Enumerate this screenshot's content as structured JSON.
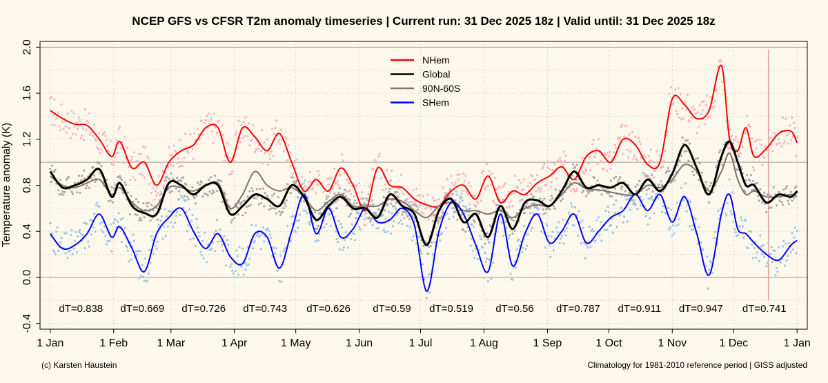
{
  "chart_data": {
    "type": "line",
    "title": "NCEP GFS vs CFSR T2m anomaly timeseries | Current run: 31 Dec 2025 18z | Valid until: 31 Dec 2025 18z",
    "ylabel": "Temperature anomaly (K)",
    "xlabel": "",
    "ylim": [
      -0.45,
      2.05
    ],
    "xlim": [
      -5,
      370
    ],
    "yticks": [
      -0.4,
      0.0,
      0.4,
      0.8,
      1.2,
      1.6,
      2.0
    ],
    "ytick_labels": [
      "-0.4",
      "0.0",
      "0.4",
      "0.8",
      "1.2",
      "1.6",
      "2.0"
    ],
    "xticks": [
      0,
      31,
      59,
      90,
      120,
      151,
      181,
      212,
      243,
      273,
      304,
      334,
      365
    ],
    "xtick_labels": [
      "1 Jan",
      "1 Feb",
      "1 Mar",
      "1 Apr",
      "1 May",
      "1 Jun",
      "1 Jul",
      "1 Aug",
      "1 Sep",
      "1 Oct",
      "1 Nov",
      "1 Dec",
      "1 Jan"
    ],
    "grid": true,
    "reference_lines": [
      0.0,
      1.0,
      2.0
    ],
    "current_day_marker": 351,
    "legend_position": "top-center",
    "series": [
      {
        "name": "NHem",
        "color": "#ff0000",
        "dots_color": "#ffb3c1",
        "x": [
          0,
          6,
          12,
          18,
          24,
          30,
          34,
          40,
          46,
          52,
          58,
          64,
          70,
          76,
          82,
          88,
          94,
          100,
          106,
          112,
          118,
          124,
          130,
          136,
          142,
          148,
          154,
          160,
          166,
          172,
          178,
          184,
          190,
          196,
          202,
          208,
          214,
          220,
          226,
          232,
          238,
          244,
          250,
          256,
          262,
          268,
          274,
          280,
          286,
          292,
          298,
          304,
          310,
          316,
          322,
          328,
          332,
          336,
          340,
          344,
          350,
          356,
          362,
          365
        ],
        "y": [
          1.45,
          1.38,
          1.33,
          1.32,
          1.2,
          1.05,
          1.18,
          0.95,
          1.0,
          0.8,
          1.0,
          1.1,
          1.15,
          1.3,
          1.3,
          1.0,
          1.3,
          1.22,
          1.1,
          1.25,
          1.0,
          0.75,
          0.85,
          0.75,
          0.95,
          0.8,
          0.58,
          0.95,
          0.8,
          0.78,
          0.68,
          0.63,
          0.62,
          0.75,
          0.8,
          0.68,
          0.88,
          0.65,
          0.75,
          0.72,
          0.82,
          0.88,
          0.96,
          0.85,
          1.05,
          1.1,
          1.0,
          1.2,
          1.15,
          0.98,
          1.0,
          1.55,
          1.5,
          1.38,
          1.45,
          1.84,
          1.2,
          1.1,
          1.3,
          1.05,
          1.12,
          1.25,
          1.27,
          1.17
        ]
      },
      {
        "name": "Global",
        "color": "#000000",
        "dots_color": "#a9a9a9",
        "x": [
          0,
          6,
          12,
          18,
          24,
          30,
          34,
          40,
          46,
          52,
          58,
          64,
          70,
          76,
          82,
          88,
          94,
          100,
          106,
          112,
          118,
          124,
          130,
          136,
          142,
          148,
          154,
          160,
          166,
          172,
          178,
          184,
          190,
          196,
          202,
          208,
          214,
          220,
          226,
          232,
          238,
          244,
          250,
          256,
          262,
          268,
          274,
          280,
          286,
          292,
          298,
          304,
          310,
          316,
          322,
          328,
          332,
          336,
          340,
          344,
          350,
          356,
          362,
          365
        ],
        "y": [
          0.92,
          0.78,
          0.8,
          0.85,
          0.94,
          0.7,
          0.82,
          0.62,
          0.56,
          0.55,
          0.82,
          0.8,
          0.72,
          0.8,
          0.8,
          0.55,
          0.62,
          0.72,
          0.68,
          0.62,
          0.8,
          0.7,
          0.5,
          0.62,
          0.7,
          0.6,
          0.6,
          0.52,
          0.72,
          0.62,
          0.55,
          0.28,
          0.58,
          0.68,
          0.48,
          0.55,
          0.35,
          0.62,
          0.42,
          0.65,
          0.67,
          0.62,
          0.75,
          0.92,
          0.78,
          0.8,
          0.78,
          0.82,
          0.72,
          0.85,
          0.75,
          0.9,
          1.15,
          0.95,
          0.72,
          1.05,
          1.18,
          1.0,
          0.8,
          0.8,
          0.65,
          0.72,
          0.7,
          0.75
        ]
      },
      {
        "name": "90N-60S",
        "color": "#7f7268",
        "dots_color": null,
        "x": [
          0,
          6,
          12,
          18,
          24,
          30,
          34,
          40,
          46,
          52,
          58,
          64,
          70,
          76,
          82,
          88,
          94,
          100,
          106,
          112,
          118,
          124,
          130,
          136,
          142,
          148,
          154,
          160,
          166,
          172,
          178,
          184,
          190,
          196,
          202,
          208,
          214,
          220,
          226,
          232,
          238,
          244,
          250,
          256,
          262,
          268,
          274,
          280,
          286,
          292,
          298,
          304,
          310,
          316,
          322,
          328,
          332,
          336,
          340,
          344,
          350,
          356,
          362,
          365
        ],
        "y": [
          0.88,
          0.8,
          0.78,
          0.82,
          0.85,
          0.72,
          0.78,
          0.65,
          0.58,
          0.62,
          0.78,
          0.78,
          0.75,
          0.8,
          0.82,
          0.6,
          0.72,
          0.92,
          0.8,
          0.75,
          0.78,
          0.7,
          0.58,
          0.66,
          0.72,
          0.62,
          0.62,
          0.62,
          0.68,
          0.66,
          0.58,
          0.52,
          0.62,
          0.65,
          0.58,
          0.58,
          0.55,
          0.58,
          0.52,
          0.6,
          0.63,
          0.62,
          0.72,
          0.82,
          0.77,
          0.76,
          0.74,
          0.72,
          0.72,
          0.8,
          0.78,
          0.85,
          0.98,
          0.92,
          0.75,
          0.92,
          1.08,
          0.85,
          0.72,
          0.75,
          0.7,
          0.7,
          0.72,
          0.7
        ]
      },
      {
        "name": "SHem",
        "color": "#0000ff",
        "dots_color": "#9dc8e8",
        "x": [
          0,
          6,
          12,
          18,
          24,
          30,
          34,
          40,
          46,
          52,
          58,
          64,
          70,
          76,
          82,
          88,
          94,
          100,
          106,
          112,
          118,
          124,
          130,
          136,
          142,
          148,
          154,
          160,
          166,
          172,
          178,
          184,
          190,
          196,
          202,
          208,
          214,
          220,
          226,
          232,
          238,
          244,
          250,
          256,
          262,
          268,
          274,
          280,
          286,
          292,
          298,
          304,
          310,
          316,
          322,
          328,
          332,
          336,
          340,
          344,
          350,
          356,
          362,
          365
        ],
        "y": [
          0.38,
          0.25,
          0.28,
          0.38,
          0.55,
          0.35,
          0.44,
          0.25,
          0.05,
          0.38,
          0.52,
          0.6,
          0.4,
          0.25,
          0.38,
          0.18,
          0.12,
          0.38,
          0.35,
          0.08,
          0.4,
          0.72,
          0.38,
          0.6,
          0.35,
          0.42,
          0.6,
          0.48,
          0.5,
          0.6,
          0.45,
          -0.12,
          0.4,
          0.65,
          0.55,
          0.28,
          0.05,
          0.55,
          0.1,
          0.38,
          0.55,
          0.3,
          0.4,
          0.55,
          0.3,
          0.4,
          0.52,
          0.58,
          0.72,
          0.58,
          0.72,
          0.48,
          0.7,
          0.38,
          0.02,
          0.55,
          0.72,
          0.42,
          0.38,
          0.3,
          0.2,
          0.15,
          0.28,
          0.32
        ]
      }
    ],
    "annotations": [
      {
        "label": "dT=0.838",
        "x": 15
      },
      {
        "label": "dT=0.669",
        "x": 45
      },
      {
        "label": "dT=0.726",
        "x": 75
      },
      {
        "label": "dT=0.743",
        "x": 105
      },
      {
        "label": "dT=0.626",
        "x": 136
      },
      {
        "label": "dT=0.59",
        "x": 167
      },
      {
        "label": "dT=0.519",
        "x": 196
      },
      {
        "label": "dT=0.56",
        "x": 227
      },
      {
        "label": "dT=0.787",
        "x": 258
      },
      {
        "label": "dT=0.911",
        "x": 288
      },
      {
        "label": "dT=0.947",
        "x": 318
      },
      {
        "label": "dT=0.741",
        "x": 349
      }
    ]
  },
  "footer": {
    "left": "(c) Karsten Haustein",
    "right": "Climatology for 1981-2010 reference period | GISS adjusted"
  }
}
